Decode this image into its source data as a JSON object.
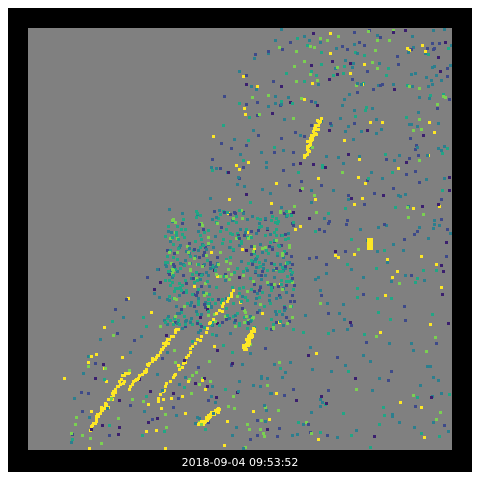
{
  "image": {
    "timestamp": "2018-09-04 09:53:52",
    "frame_color": "#000000",
    "nodata_color": "#808080",
    "colormap": [
      "#3b1f6e",
      "#3e4a89",
      "#2c7f8e",
      "#21a685",
      "#7ad151",
      "#fde725"
    ]
  }
}
